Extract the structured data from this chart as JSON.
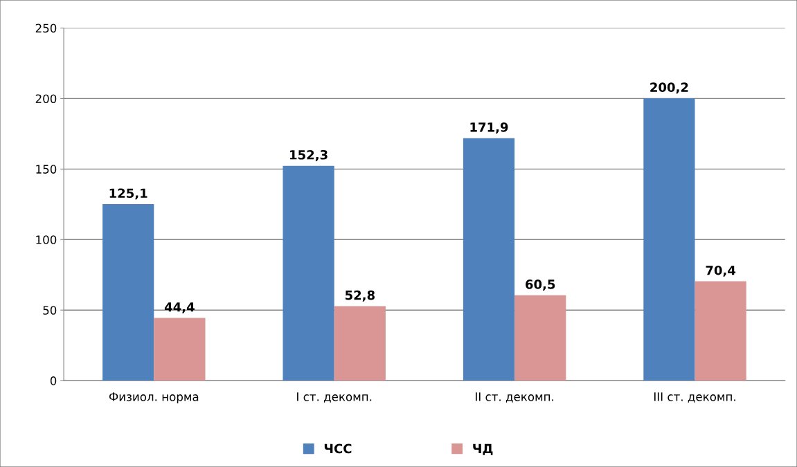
{
  "chart_data": {
    "type": "bar",
    "categories": [
      "Физиол. норма",
      "I ст. декомп.",
      "II ст. декомп.",
      "III ст. декомп."
    ],
    "series": [
      {
        "name": "ЧСС",
        "color": "#4f81bd",
        "values": [
          125.1,
          152.3,
          171.9,
          200.2
        ],
        "value_labels": [
          "125,1",
          "152,3",
          "171,9",
          "200,2"
        ]
      },
      {
        "name": "ЧД",
        "color": "#d99694",
        "values": [
          44.4,
          52.8,
          60.5,
          70.4
        ],
        "value_labels": [
          "44,4",
          "52,8",
          "60,5",
          "70,4"
        ]
      }
    ],
    "ylim": [
      0,
      250
    ],
    "yticks": [
      0,
      50,
      100,
      150,
      200,
      250
    ],
    "grid": "y",
    "legend": "bottom"
  }
}
